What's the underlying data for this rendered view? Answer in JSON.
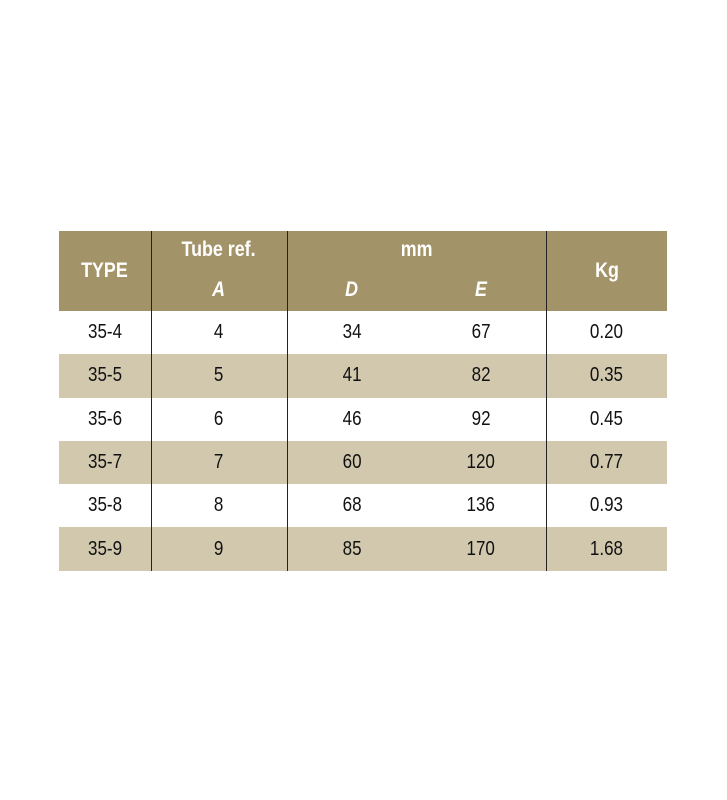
{
  "header": {
    "type": "TYPE",
    "tube_ref": "Tube ref.",
    "mm": "mm",
    "kg": "Kg",
    "a": "A",
    "d": "D",
    "e": "E"
  },
  "rows": [
    [
      "35-4",
      "4",
      "34",
      "67",
      "0.20"
    ],
    [
      "35-5",
      "5",
      "41",
      "82",
      "0.35"
    ],
    [
      "35-6",
      "6",
      "46",
      "92",
      "0.45"
    ],
    [
      "35-7",
      "7",
      "60",
      "120",
      "0.77"
    ],
    [
      "35-8",
      "8",
      "68",
      "136",
      "0.93"
    ],
    [
      "35-9",
      "9",
      "85",
      "170",
      "1.68"
    ]
  ],
  "colors": {
    "header": "#a39368",
    "stripe": "#d1c8ae"
  }
}
